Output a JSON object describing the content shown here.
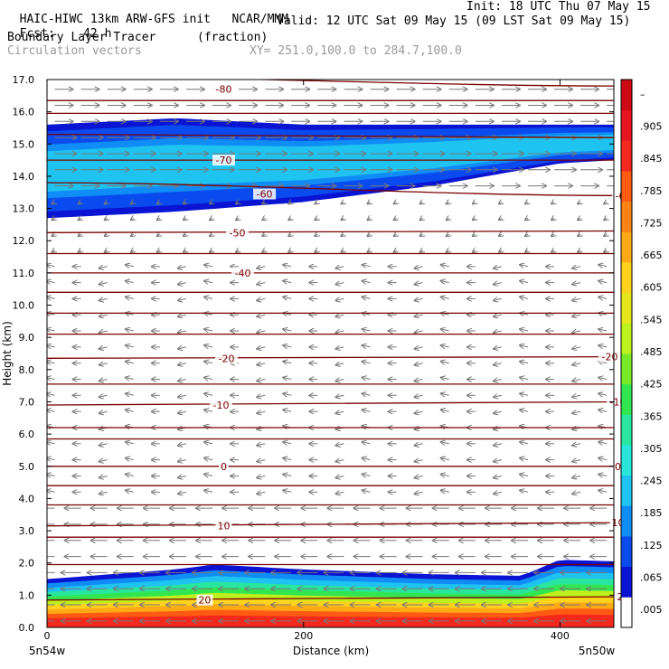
{
  "header": {
    "model": "HAIC-HIWC 13km ARW-GFS init",
    "org": "NCAR/MMM",
    "init": "Init: 18 UTC Thu 07 May 15",
    "fcst_label": "Fcst:",
    "fcst_value": "42 h",
    "valid": "Valid: 12 UTC Sat 09 May 15 (09 LST Sat 09 May 15)",
    "field1": "Boundary Layer Tracer",
    "field1_units": "(fraction)",
    "field2": "Circulation vectors",
    "xsect": "XY= 251.0,100.0 to 284.7,100.0"
  },
  "chart_data": {
    "type": "heatmap",
    "title": "Boundary Layer Tracer",
    "units": "(fraction)",
    "xlabel": "Distance (km)",
    "ylabel": "Height (km)",
    "xlim": [
      0,
      442
    ],
    "ylim": [
      0,
      17
    ],
    "x_ticks": [
      0,
      200,
      400
    ],
    "y_ticks": [
      "0.0",
      "1.0",
      "2.0",
      "3.0",
      "4.0",
      "5.0",
      "6.0",
      "7.0",
      "8.0",
      "9.0",
      "10.0",
      "11.0",
      "12.0",
      "13.0",
      "14.0",
      "15.0",
      "16.0",
      "17.0"
    ],
    "x_end_labels": [
      "5n54w",
      "5n50w"
    ],
    "colorbar": {
      "labels": [
        ".005",
        ".065",
        ".125",
        ".185",
        ".245",
        ".305",
        ".365",
        ".425",
        ".485",
        ".545",
        ".605",
        ".665",
        ".725",
        ".785",
        ".845",
        ".905",
        "–"
      ],
      "colors": [
        "#ffffff",
        "#0a14d2",
        "#0a4bf0",
        "#0f8cf5",
        "#1ec3f0",
        "#28e6dc",
        "#28e6a0",
        "#32e650",
        "#78eb28",
        "#bef01e",
        "#e6e61e",
        "#ffd21e",
        "#ffaa14",
        "#ff8214",
        "#ff5a14",
        "#f5281e",
        "#e6141e",
        "#cd0a14"
      ]
    },
    "isotherms": [
      {
        "label": "-80",
        "levels_km": [
          17.1,
          16.8
        ],
        "labels_at": [
          [
            65,
            16.7
          ]
        ]
      },
      {
        "label": "-70",
        "levels_km": [
          15.3,
          15.2
        ],
        "labels_at": [
          [
            65,
            14.5
          ]
        ]
      },
      {
        "label": "-60",
        "levels_km": [
          13.8,
          13.4
        ],
        "labels_at": [
          [
            80,
            13.45
          ],
          [
            212,
            13.4
          ]
        ]
      },
      {
        "label": "-50",
        "levels_km": [
          12.25,
          12.3
        ],
        "labels_at": [
          [
            70,
            12.25
          ]
        ]
      },
      {
        "label": "-40",
        "levels_km": [
          11.0,
          11.0
        ],
        "labels_at": [
          [
            72,
            11.0
          ]
        ]
      },
      {
        "label": "-20",
        "levels_km": [
          8.35,
          8.4
        ],
        "labels_at": [
          [
            66,
            8.35
          ],
          [
            207,
            8.4
          ]
        ]
      },
      {
        "label": "-10",
        "levels_km": [
          6.9,
          7.0
        ],
        "labels_at": [
          [
            64,
            6.9
          ],
          [
            210,
            7.0
          ]
        ]
      },
      {
        "label": "0",
        "levels_km": [
          5.0,
          5.0
        ],
        "labels_at": [
          [
            65,
            5.0
          ],
          [
            210,
            5.0
          ]
        ]
      },
      {
        "label": "10",
        "levels_km": [
          3.15,
          3.25
        ],
        "labels_at": [
          [
            65,
            3.15
          ],
          [
            210,
            3.25
          ]
        ]
      },
      {
        "label": "20",
        "levels_km": [
          0.85,
          0.95
        ],
        "labels_at": [
          [
            58,
            0.85
          ],
          [
            212,
            0.95
          ]
        ]
      }
    ],
    "extra_contour_levels_km": [
      16.35,
      15.95,
      14.5,
      11.6,
      10.4,
      9.75,
      9.1,
      7.55,
      6.2,
      5.85,
      4.4,
      3.8,
      2.8,
      1.95
    ],
    "upper_tracer_layer": {
      "x": [
        0,
        100,
        200,
        300,
        400,
        442
      ],
      "base_km": [
        12.7,
        12.9,
        13.2,
        13.7,
        14.4,
        14.5
      ],
      "top_km": [
        15.6,
        15.8,
        15.6,
        15.6,
        15.6,
        15.6
      ],
      "max_value": 0.3
    },
    "boundary_layer_tracer": {
      "x": [
        0,
        100,
        130,
        200,
        300,
        370,
        400,
        442
      ],
      "top_km": [
        1.5,
        1.8,
        1.95,
        1.8,
        1.65,
        1.6,
        2.1,
        2.05
      ],
      "max_value": 1.0
    },
    "wind_vectors": {
      "upper_levels": "westerly (left to right)",
      "lower_levels": "easterly (right to left)"
    }
  }
}
